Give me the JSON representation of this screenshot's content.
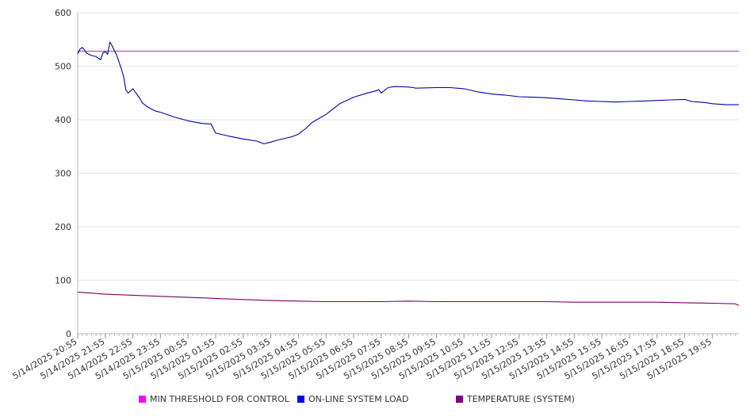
{
  "chart_data": {
    "type": "line",
    "title": "",
    "xlabel": "",
    "ylabel": "",
    "ylim": [
      0,
      600
    ],
    "yticks": [
      "0",
      "100",
      "200",
      "300",
      "400",
      "500",
      "600"
    ],
    "grid": true,
    "legend_position": "bottom",
    "x_ticks": [
      "5/14/2025 20:55",
      "5/14/2025 21:55",
      "5/14/2025 22:55",
      "5/14/2025 23:55",
      "5/15/2025 00:55",
      "5/15/2025 01:55",
      "5/15/2025 02:55",
      "5/15/2025 03:55",
      "5/15/2025 04:55",
      "5/15/2025 05:55",
      "5/15/2025 06:55",
      "5/15/2025 07:55",
      "5/15/2025 08:55",
      "5/15/2025 09:55",
      "5/15/2025 10:55",
      "5/15/2025 11:55",
      "5/15/2025 12:55",
      "5/15/2025 13:55",
      "5/15/2025 14:55",
      "5/15/2025 15:55",
      "5/15/2025 16:55",
      "5/15/2025 17:55",
      "5/15/2025 18:55",
      "5/15/2025 19:55"
    ],
    "series": [
      {
        "name": "MIN THRESHOLD FOR CONTROL",
        "color": "#cc33cc",
        "legend_color": "#ff00ff",
        "x": [
          "5/14/2025 20:55",
          "5/15/2025 20:55"
        ],
        "values": [
          528,
          528
        ]
      },
      {
        "name": "ON-LINE SYSTEM LOAD",
        "color": "#0000aa",
        "legend_color": "#0000ff",
        "x": [
          "5/14/2025 20:55",
          "5/14/2025 21:00",
          "5/14/2025 21:05",
          "5/14/2025 21:10",
          "5/14/2025 21:15",
          "5/14/2025 21:25",
          "5/14/2025 21:35",
          "5/14/2025 21:45",
          "5/14/2025 21:50",
          "5/14/2025 21:55",
          "5/14/2025 22:00",
          "5/14/2025 22:05",
          "5/14/2025 22:10",
          "5/14/2025 22:20",
          "5/14/2025 22:30",
          "5/14/2025 22:35",
          "5/14/2025 22:40",
          "5/14/2025 22:45",
          "5/14/2025 22:55",
          "5/14/2025 23:00",
          "5/14/2025 23:05",
          "5/14/2025 23:10",
          "5/14/2025 23:15",
          "5/14/2025 23:25",
          "5/14/2025 23:35",
          "5/14/2025 23:45",
          "5/14/2025 23:55",
          "5/15/2025 00:25",
          "5/15/2025 00:55",
          "5/15/2025 01:25",
          "5/15/2025 01:45",
          "5/15/2025 01:55",
          "5/15/2025 02:10",
          "5/15/2025 02:25",
          "5/15/2025 02:55",
          "5/15/2025 03:25",
          "5/15/2025 03:40",
          "5/15/2025 03:55",
          "5/15/2025 04:10",
          "5/15/2025 04:25",
          "5/15/2025 04:40",
          "5/15/2025 04:55",
          "5/15/2025 05:10",
          "5/15/2025 05:25",
          "5/15/2025 05:55",
          "5/15/2025 06:25",
          "5/15/2025 06:55",
          "5/15/2025 07:25",
          "5/15/2025 07:40",
          "5/15/2025 07:50",
          "5/15/2025 07:55",
          "5/15/2025 08:10",
          "5/15/2025 08:25",
          "5/15/2025 08:55",
          "5/15/2025 09:05",
          "5/15/2025 09:10",
          "5/15/2025 09:55",
          "5/15/2025 10:25",
          "5/15/2025 10:55",
          "5/15/2025 11:25",
          "5/15/2025 11:55",
          "5/15/2025 12:25",
          "5/15/2025 12:55",
          "5/15/2025 13:25",
          "5/15/2025 13:55",
          "5/15/2025 14:25",
          "5/15/2025 14:55",
          "5/15/2025 15:25",
          "5/15/2025 15:55",
          "5/15/2025 16:25",
          "5/15/2025 16:55",
          "5/15/2025 17:25",
          "5/15/2025 17:55",
          "5/15/2025 18:25",
          "5/15/2025 18:55",
          "5/15/2025 19:10",
          "5/15/2025 19:25",
          "5/15/2025 19:40",
          "5/15/2025 19:55",
          "5/15/2025 20:25",
          "5/15/2025 20:55"
        ],
        "values": [
          523,
          532,
          535,
          530,
          524,
          520,
          518,
          512,
          525,
          527,
          522,
          545,
          538,
          520,
          495,
          480,
          455,
          450,
          458,
          452,
          446,
          440,
          432,
          425,
          420,
          416,
          414,
          405,
          398,
          393,
          392,
          375,
          372,
          369,
          364,
          360,
          355,
          358,
          362,
          365,
          368,
          373,
          383,
          395,
          410,
          430,
          442,
          450,
          453,
          456,
          450,
          460,
          462,
          461,
          460,
          459,
          460,
          460,
          458,
          452,
          448,
          446,
          443,
          442,
          441,
          439,
          437,
          435,
          434,
          433,
          434,
          435,
          436,
          437,
          438,
          434,
          433,
          432,
          430,
          428,
          428
        ]
      },
      {
        "name": "TEMPERATURE (SYSTEM)",
        "color": "#770066",
        "legend_color": "#800080",
        "x": [
          "5/14/2025 20:55",
          "5/14/2025 21:55",
          "5/14/2025 22:55",
          "5/14/2025 23:55",
          "5/15/2025 00:55",
          "5/15/2025 01:55",
          "5/15/2025 02:55",
          "5/15/2025 03:55",
          "5/15/2025 04:55",
          "5/15/2025 05:55",
          "5/15/2025 06:55",
          "5/15/2025 07:55",
          "5/15/2025 08:55",
          "5/15/2025 09:55",
          "5/15/2025 10:55",
          "5/15/2025 11:55",
          "5/15/2025 12:55",
          "5/15/2025 13:55",
          "5/15/2025 14:55",
          "5/15/2025 15:55",
          "5/15/2025 16:55",
          "5/15/2025 17:55",
          "5/15/2025 18:55",
          "5/15/2025 19:55",
          "5/15/2025 20:45",
          "5/15/2025 20:55"
        ],
        "values": [
          78,
          74,
          72,
          70,
          68,
          66,
          64,
          62,
          61,
          60,
          60,
          60,
          61,
          60,
          60,
          60,
          60,
          60,
          59,
          59,
          59,
          59,
          58,
          57,
          56,
          53
        ]
      }
    ]
  }
}
